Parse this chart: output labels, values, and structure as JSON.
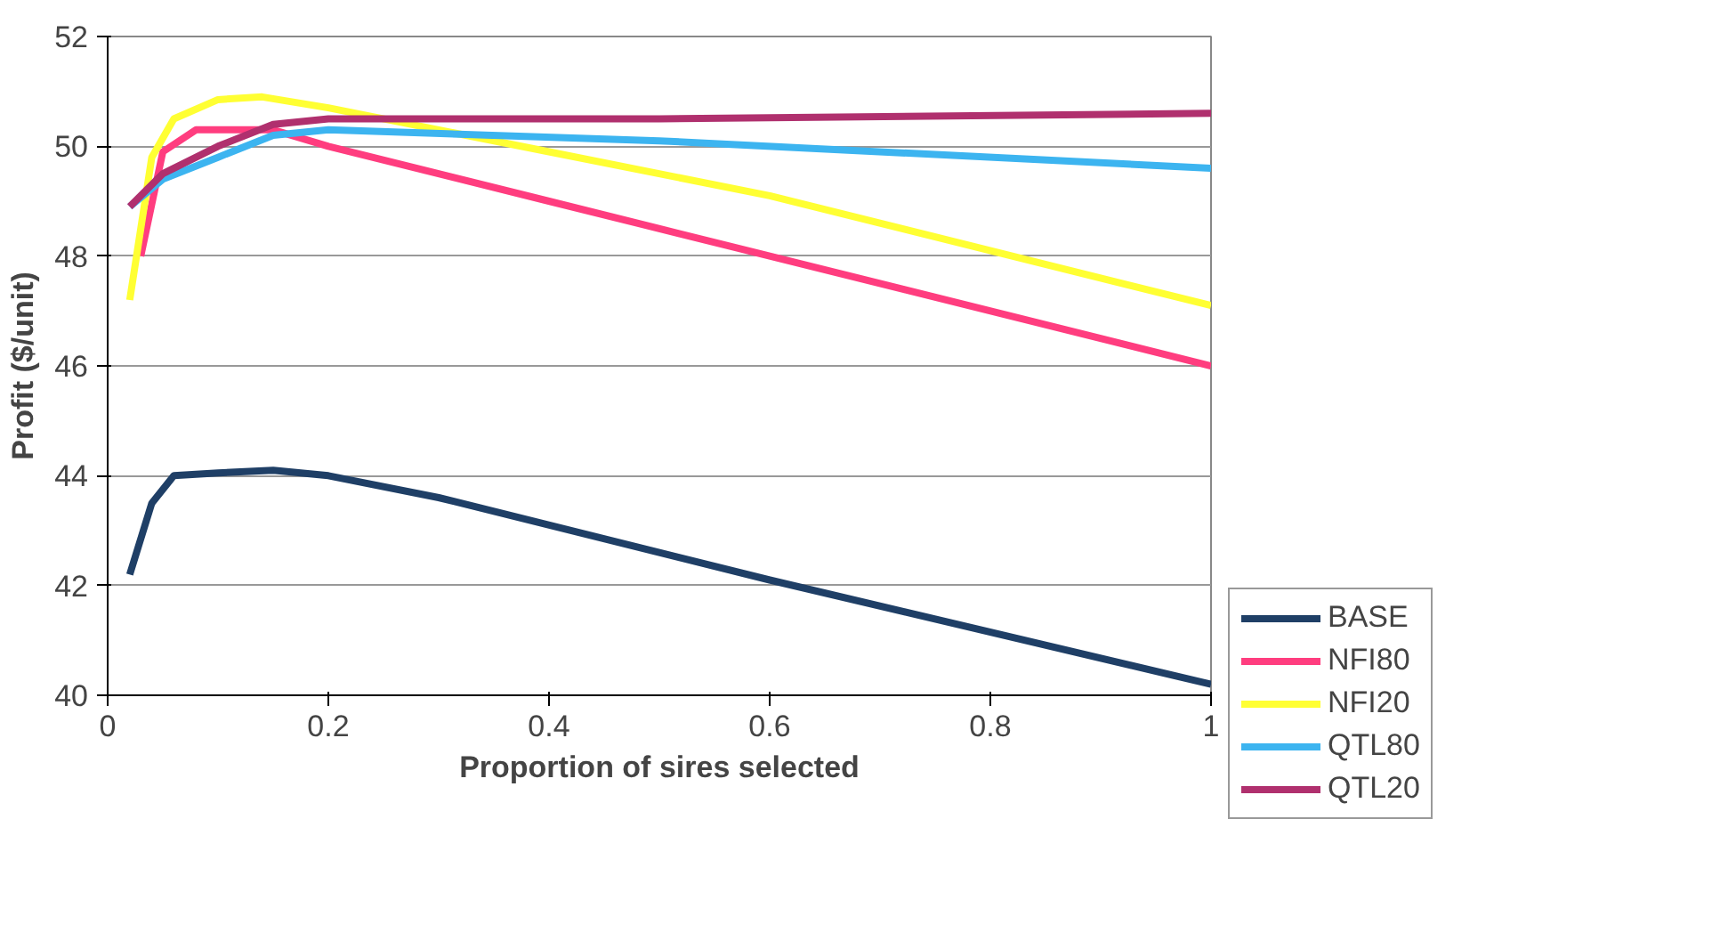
{
  "chart_data": {
    "type": "line",
    "xlabel": "Proportion of sires selected",
    "ylabel": "Profit ($/unit)",
    "xlim": [
      0,
      1
    ],
    "ylim": [
      40,
      52
    ],
    "xticks": [
      0,
      0.2,
      0.4,
      0.6,
      0.8,
      1
    ],
    "yticks": [
      40,
      42,
      44,
      46,
      48,
      50,
      52
    ],
    "grid": "y",
    "legend": "right",
    "marker": "none",
    "line_style": "solid",
    "series": [
      {
        "name": "BASE",
        "color": "#1f3f66",
        "x": [
          0.02,
          0.04,
          0.06,
          0.1,
          0.15,
          0.2,
          0.3,
          0.6,
          1
        ],
        "values": [
          42.2,
          43.5,
          44.0,
          44.05,
          44.1,
          44.0,
          43.6,
          42.1,
          40.2
        ]
      },
      {
        "name": "NFI80",
        "color": "#ff3d7f",
        "x": [
          0.03,
          0.05,
          0.08,
          0.15,
          0.2,
          0.4,
          0.6,
          1
        ],
        "values": [
          48.0,
          49.9,
          50.3,
          50.3,
          50.0,
          49.0,
          48.0,
          46.0
        ]
      },
      {
        "name": "NFI20",
        "color": "#ffff33",
        "x": [
          0.02,
          0.04,
          0.06,
          0.1,
          0.14,
          0.2,
          0.4,
          0.6,
          1
        ],
        "values": [
          47.2,
          49.8,
          50.5,
          50.85,
          50.9,
          50.7,
          49.9,
          49.1,
          47.1
        ]
      },
      {
        "name": "QTL80",
        "color": "#3cb4f0",
        "x": [
          0.02,
          0.05,
          0.1,
          0.15,
          0.2,
          0.5,
          1
        ],
        "values": [
          48.9,
          49.4,
          49.8,
          50.2,
          50.3,
          50.1,
          49.6
        ]
      },
      {
        "name": "QTL20",
        "color": "#b0306e",
        "x": [
          0.02,
          0.05,
          0.1,
          0.15,
          0.2,
          0.5,
          1
        ],
        "values": [
          48.9,
          49.5,
          50.0,
          50.4,
          50.5,
          50.5,
          50.6
        ]
      }
    ]
  }
}
